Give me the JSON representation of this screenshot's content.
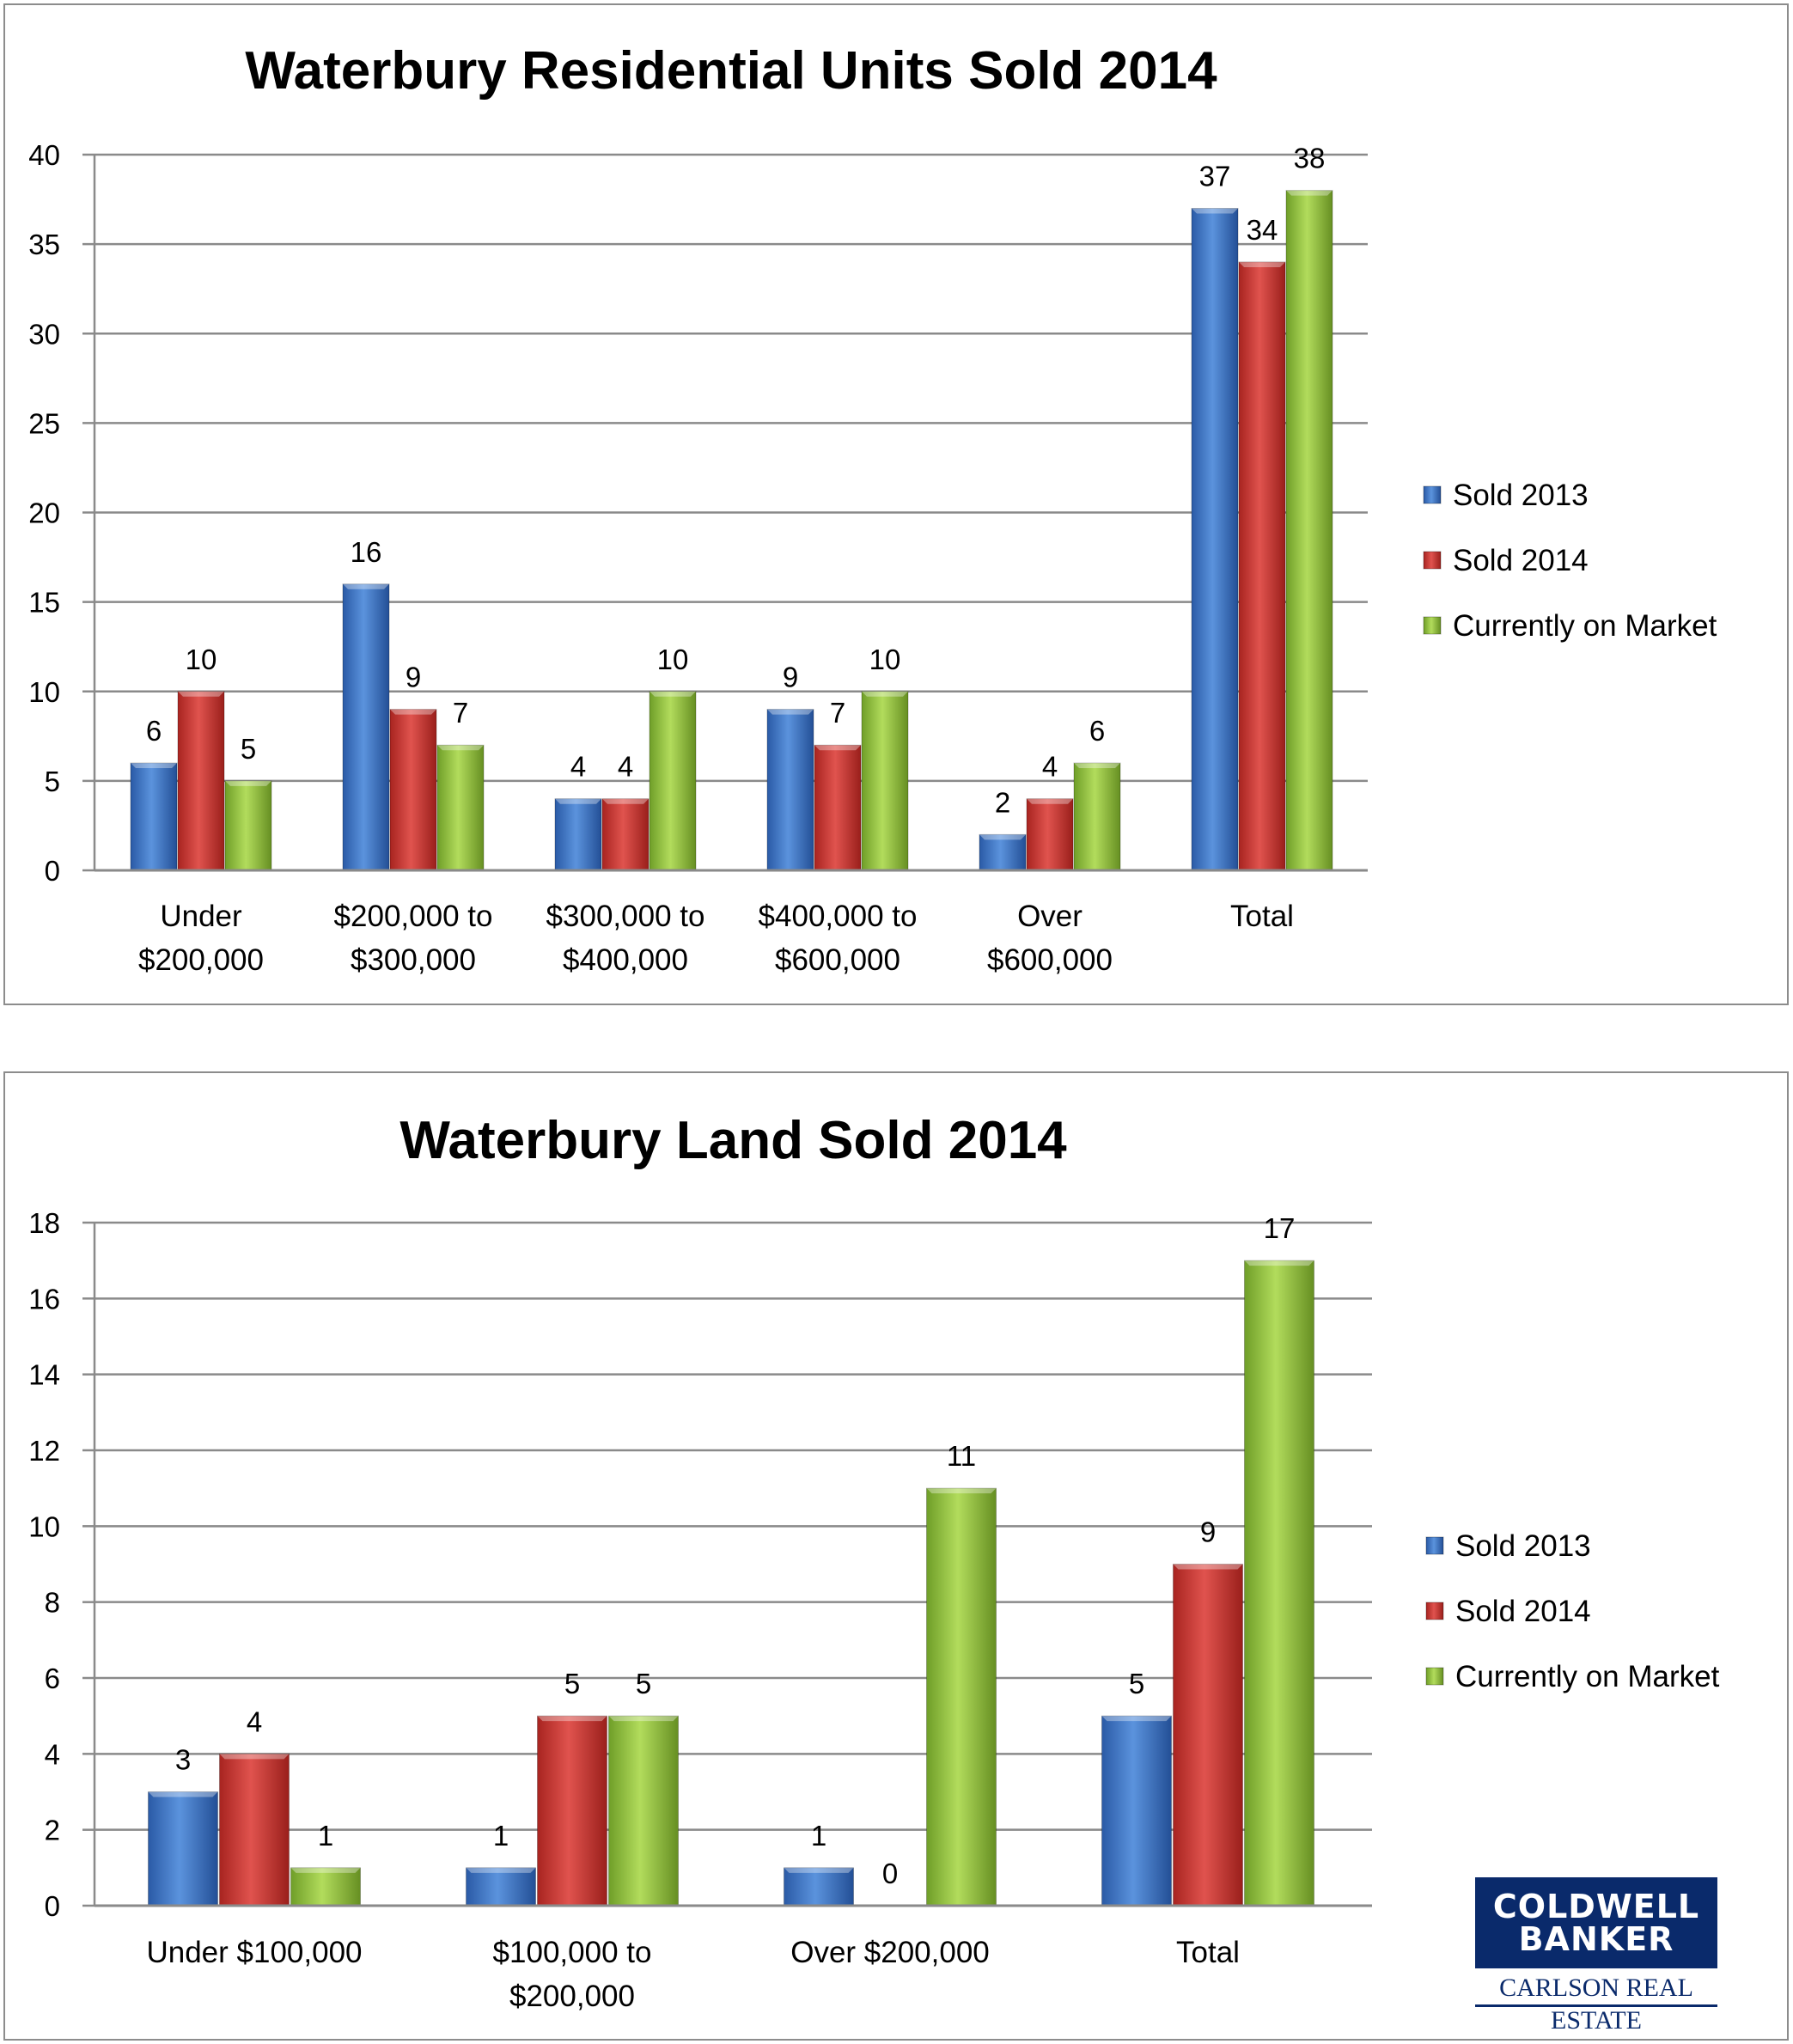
{
  "chart_data": [
    {
      "type": "bar",
      "title": "Waterbury Residential Units Sold 2014",
      "categories": [
        [
          "Under",
          "$200,000"
        ],
        [
          "$200,000 to",
          "$300,000"
        ],
        [
          "$300,000 to",
          "$400,000"
        ],
        [
          "$400,000 to",
          "$600,000"
        ],
        [
          "Over",
          "$600,000"
        ],
        [
          "Total"
        ]
      ],
      "series": [
        {
          "name": "Sold 2013",
          "values": [
            6,
            16,
            4,
            9,
            2,
            37
          ],
          "color": "#3b74c4"
        },
        {
          "name": "Sold 2014",
          "values": [
            10,
            9,
            4,
            7,
            4,
            34
          ],
          "color": "#c9302c"
        },
        {
          "name": "Currently on Market",
          "values": [
            5,
            7,
            10,
            10,
            6,
            38
          ],
          "color": "#8fc03c"
        }
      ],
      "data_labels": [
        [
          "6",
          "16",
          "4",
          "9",
          "2",
          "37"
        ],
        [
          "10",
          "9",
          "4",
          "7",
          "4",
          "34"
        ],
        [
          "5",
          "7",
          "10",
          "10",
          "6",
          "38"
        ]
      ],
      "ylim": [
        0,
        40
      ],
      "yticks": [
        0,
        5,
        10,
        15,
        20,
        25,
        30,
        35,
        40
      ],
      "grid": true,
      "legend": "right",
      "xlabel": "",
      "ylabel": ""
    },
    {
      "type": "bar",
      "title": "Waterbury Land Sold 2014",
      "categories": [
        [
          "Under $100,000"
        ],
        [
          "$100,000 to",
          "$200,000"
        ],
        [
          "Over $200,000"
        ],
        [
          "Total"
        ]
      ],
      "series": [
        {
          "name": "Sold 2013",
          "values": [
            3,
            1,
            1,
            5
          ],
          "color": "#3b74c4"
        },
        {
          "name": "Sold 2014",
          "values": [
            4,
            5,
            0,
            9
          ],
          "color": "#c9302c"
        },
        {
          "name": "Currently on Market",
          "values": [
            1,
            5,
            11,
            17
          ],
          "color": "#8fc03c"
        }
      ],
      "data_labels": [
        [
          "3",
          "1",
          "1",
          "5"
        ],
        [
          "4",
          "5",
          "0",
          "9"
        ],
        [
          "1",
          "5",
          "11",
          "17"
        ]
      ],
      "ylim": [
        0,
        18
      ],
      "yticks": [
        0,
        2,
        4,
        6,
        8,
        10,
        12,
        14,
        16,
        18
      ],
      "grid": true,
      "legend": "right",
      "xlabel": "",
      "ylabel": ""
    }
  ],
  "logo": {
    "line1": "COLDWELL",
    "line2": "BANKER",
    "line3": "CARLSON REAL ESTATE"
  }
}
